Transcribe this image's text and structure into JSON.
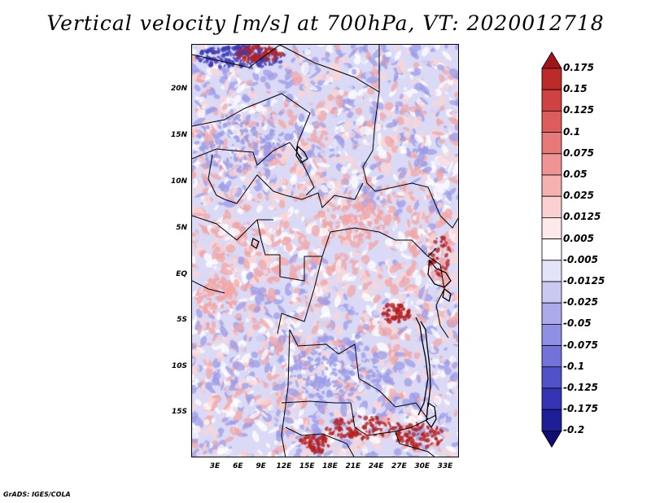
{
  "title": "Vertical velocity [m/s] at 700hPa, VT: 2020012718",
  "footer": "GrADS: IGES/COLA",
  "lat_labels": [
    "20N",
    "15N",
    "10N",
    "5N",
    "EQ",
    "5S",
    "10S",
    "15S"
  ],
  "lon_labels": [
    "3E",
    "6E",
    "9E",
    "12E",
    "15E",
    "18E",
    "21E",
    "24E",
    "27E",
    "30E",
    "33E"
  ],
  "colorbar": {
    "levels": [
      "0.175",
      "0.15",
      "0.125",
      "0.1",
      "0.075",
      "0.05",
      "0.025",
      "0.0125",
      "0.005",
      "-0.005",
      "-0.0125",
      "-0.025",
      "-0.05",
      "-0.075",
      "-0.1",
      "-0.125",
      "-0.175",
      "-0.2"
    ],
    "colors": [
      "#a1141a",
      "#bc2a2a",
      "#cf4242",
      "#de5c5c",
      "#e87979",
      "#ef9494",
      "#f5b0b0",
      "#fad0d0",
      "#fde9e9",
      "#ffffff",
      "#e4e4f8",
      "#c9c9f3",
      "#ababec",
      "#8f8fe4",
      "#7272d8",
      "#5252c8",
      "#3434b4",
      "#1e1e96",
      "#100c70"
    ]
  },
  "field_colors": {
    "strong_up": "#b52222",
    "up": "#f2a6a6",
    "weak_up": "#fbd6d6",
    "neutral": "#ffffff",
    "weak_down": "#dadaf6",
    "down": "#9c9ce8",
    "strong_down": "#3a3ab8"
  }
}
